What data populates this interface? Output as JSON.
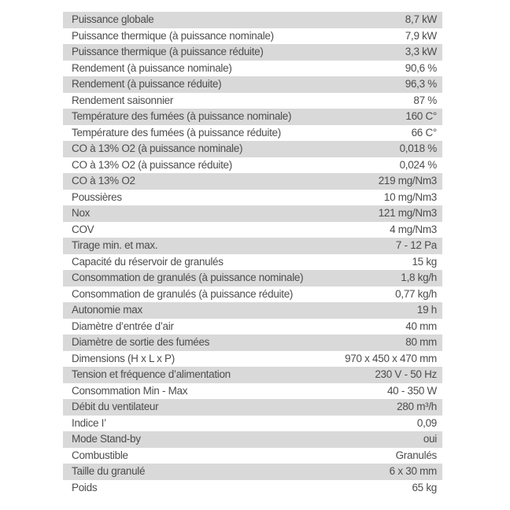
{
  "table": {
    "colors": {
      "row_alt": "#d9d9d9",
      "text": "#4d4d4d",
      "background": "#ffffff"
    },
    "rows": [
      {
        "label": "Puissance globale",
        "value": "8,7 kW"
      },
      {
        "label": "Puissance thermique (à puissance nominale)",
        "value": "7,9 kW"
      },
      {
        "label": "Puissance thermique (à puissance réduite)",
        "value": "3,3 kW"
      },
      {
        "label": "Rendement (à puissance nominale)",
        "value": "90,6 %"
      },
      {
        "label": "Rendement (à puissance réduite)",
        "value": "96,3 %"
      },
      {
        "label": "Rendement saisonnier",
        "value": "87 %"
      },
      {
        "label": "Température des fumées (à puissance nominale)",
        "value": "160 C°"
      },
      {
        "label": "Température des fumées (à puissance réduite)",
        "value": "66 C°"
      },
      {
        "label": "CO à 13% O2 (à puissance nominale)",
        "value": "0,018 %"
      },
      {
        "label": "CO à 13% O2 (à puissance réduite)",
        "value": "0,024 %"
      },
      {
        "label": "CO à 13% O2",
        "value": "219 mg/Nm3"
      },
      {
        "label": "Poussières",
        "value": "10 mg/Nm3"
      },
      {
        "label": "Nox",
        "value": "121 mg/Nm3"
      },
      {
        "label": "COV",
        "value": "4 mg/Nm3"
      },
      {
        "label": "Tirage min. et max.",
        "value": "7 - 12 Pa"
      },
      {
        "label": "Capacité du réservoir de granulés",
        "value": "15 kg"
      },
      {
        "label": "Consommation de granulés (à puissance nominale)",
        "value": "1,8 kg/h"
      },
      {
        "label": "Consommation de granulés (à puissance réduite)",
        "value": "0,77 kg/h"
      },
      {
        "label": "Autonomie max",
        "value": "19 h"
      },
      {
        "label": "Diamètre d’entrée d’air",
        "value": "40 mm"
      },
      {
        "label": "Diamètre de sortie des fumées",
        "value": "80 mm"
      },
      {
        "label": "Dimensions (H x L x P)",
        "value": "970 x 450 x 470 mm"
      },
      {
        "label": "Tension et fréquence d’alimentation",
        "value": "230 V - 50 Hz"
      },
      {
        "label": "Consommation Min - Max",
        "value": "40 - 350 W"
      },
      {
        "label": "Débit du ventilateur",
        "value": "280 m³/h"
      },
      {
        "label": "Indice I’",
        "value": "0,09"
      },
      {
        "label": "Mode Stand-by",
        "value": "oui"
      },
      {
        "label": "Combustible",
        "value": "Granulés"
      },
      {
        "label": "Taille du granulé",
        "value": "6 x 30 mm"
      },
      {
        "label": "Poids",
        "value": "65 kg"
      }
    ]
  }
}
